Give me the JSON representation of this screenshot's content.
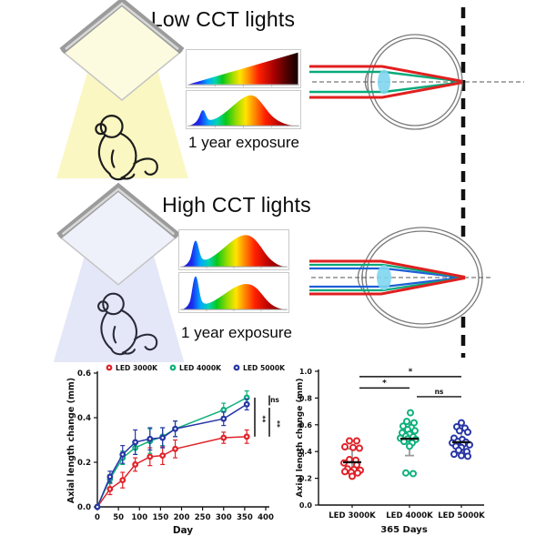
{
  "sections": {
    "low": {
      "title": "Low CCT lights",
      "exposure_label": "1 year exposure",
      "beam_color": "#fbf7c2",
      "lamp_face_color": "#fdfbdf",
      "spectra": [
        "blackbody-ramp-spectrum",
        "warm-white-led-spectrum"
      ],
      "eye": {
        "state": "normal axial length, focus on retina at reference line",
        "ray_colors": [
          "#e01f1f",
          "#09a97a"
        ]
      }
    },
    "high": {
      "title": "High CCT lights",
      "exposure_label": "1 year exposure",
      "beam_color": "#e4e7f7",
      "lamp_face_color": "#eef0fa",
      "spectra": [
        "cool-white-led-spectrum-A",
        "cool-white-led-spectrum-B"
      ],
      "eye": {
        "state": "elongated eye extending past reference line, focus in front of retina",
        "ray_colors": [
          "#e01f1f",
          "#09a97a",
          "#1d5fd6"
        ]
      }
    }
  },
  "colors": {
    "led3000k": "#e02128",
    "led4000k": "#0db07c",
    "led5000k": "#2836a6",
    "lens": "#7fd6f0",
    "eye_outline": "#7a7a7a",
    "reference_line": "#111111"
  },
  "chart_data": [
    {
      "type": "line",
      "title": "",
      "xlabel": "Day",
      "ylabel": "Axial length change (mm)",
      "xlim": [
        0,
        400
      ],
      "ylim": [
        0,
        0.6
      ],
      "xticks": [
        0,
        50,
        100,
        150,
        200,
        250,
        300,
        350,
        400
      ],
      "yticks": [
        0.0,
        0.2,
        0.4,
        0.6
      ],
      "grid": false,
      "legend_position": "top",
      "x": [
        0,
        30,
        60,
        90,
        125,
        155,
        185,
        300,
        355
      ],
      "series": [
        {
          "name": "LED 3000K",
          "color": "#e02128",
          "values": [
            0,
            0.08,
            0.12,
            0.19,
            0.225,
            0.23,
            0.26,
            0.31,
            0.315
          ],
          "errors": [
            0,
            0.025,
            0.035,
            0.03,
            0.04,
            0.04,
            0.04,
            0.025,
            0.03
          ]
        },
        {
          "name": "LED 4000K",
          "color": "#0db07c",
          "values": [
            0,
            0.125,
            0.22,
            0.265,
            0.295,
            0.315,
            0.35,
            0.435,
            0.49
          ],
          "errors": [
            0,
            0.02,
            0.03,
            0.03,
            0.055,
            0.04,
            0.035,
            0.03,
            0.03
          ]
        },
        {
          "name": "LED 5000K",
          "color": "#2836a6",
          "values": [
            0,
            0.135,
            0.235,
            0.29,
            0.305,
            0.31,
            0.35,
            0.395,
            0.46
          ],
          "errors": [
            0,
            0.025,
            0.04,
            0.055,
            0.05,
            0.045,
            0.035,
            0.03,
            0.025
          ]
        }
      ],
      "significance": [
        {
          "lane": 0,
          "from": 0.315,
          "to": 0.49,
          "label": "**"
        },
        {
          "lane": 1,
          "from": 0.455,
          "to": 0.5,
          "label": "ns"
        },
        {
          "lane": 1,
          "from": 0.315,
          "to": 0.445,
          "label": "**"
        }
      ]
    },
    {
      "type": "scatter",
      "title": "",
      "xlabel": "365 Days",
      "ylabel": "Axial length change (mm)",
      "ylim": [
        0,
        1.0
      ],
      "yticks": [
        0.0,
        0.2,
        0.4,
        0.6,
        0.8,
        1.0
      ],
      "categories": [
        "LED 3000K",
        "LED 4000K",
        "LED 5000K"
      ],
      "groups": [
        {
          "name": "LED 3000K",
          "color": "#e02128",
          "mean": 0.32,
          "sd_low": 0.24,
          "sd_high": 0.42,
          "points": [
            [
              -3,
              0.48
            ],
            [
              5,
              0.48
            ],
            [
              -8,
              0.435
            ],
            [
              1,
              0.43
            ],
            [
              8,
              0.425
            ],
            [
              -3,
              0.34
            ],
            [
              4,
              0.335
            ],
            [
              -9,
              0.315
            ],
            [
              5,
              0.3
            ],
            [
              -5,
              0.27
            ],
            [
              2,
              0.265
            ],
            [
              9,
              0.26
            ],
            [
              -8,
              0.25
            ],
            [
              -1,
              0.245
            ],
            [
              6,
              0.24
            ],
            [
              0,
              0.215
            ]
          ]
        },
        {
          "name": "LED 4000K",
          "color": "#0db07c",
          "mean": 0.495,
          "sd_low": 0.37,
          "sd_high": 0.615,
          "points": [
            [
              1,
              0.69
            ],
            [
              -3,
              0.625
            ],
            [
              5,
              0.615
            ],
            [
              -7,
              0.59
            ],
            [
              2,
              0.58
            ],
            [
              -2,
              0.565
            ],
            [
              6,
              0.555
            ],
            [
              -8,
              0.54
            ],
            [
              0,
              0.53
            ],
            [
              -4,
              0.515
            ],
            [
              4,
              0.51
            ],
            [
              -10,
              0.5
            ],
            [
              -2,
              0.495
            ],
            [
              7,
              0.49
            ],
            [
              -6,
              0.475
            ],
            [
              3,
              0.465
            ],
            [
              0,
              0.44
            ],
            [
              -4,
              0.24
            ],
            [
              4,
              0.235
            ]
          ]
        },
        {
          "name": "LED 5000K",
          "color": "#2836a6",
          "mean": 0.47,
          "sd_low": 0.4,
          "sd_high": 0.555,
          "points": [
            [
              0,
              0.615
            ],
            [
              -5,
              0.585
            ],
            [
              4,
              0.575
            ],
            [
              -2,
              0.555
            ],
            [
              7,
              0.545
            ],
            [
              -8,
              0.5
            ],
            [
              1,
              0.49
            ],
            [
              -4,
              0.475
            ],
            [
              5,
              0.47
            ],
            [
              -10,
              0.465
            ],
            [
              2,
              0.455
            ],
            [
              9,
              0.45
            ],
            [
              -6,
              0.44
            ],
            [
              0,
              0.43
            ],
            [
              -3,
              0.41
            ],
            [
              6,
              0.4
            ],
            [
              -8,
              0.38
            ],
            [
              0,
              0.37
            ],
            [
              7,
              0.365
            ]
          ]
        }
      ],
      "significance": [
        {
          "between": [
            0,
            2
          ],
          "y": 0.96,
          "label": "*"
        },
        {
          "between": [
            0,
            1
          ],
          "y": 0.875,
          "label": "*"
        },
        {
          "between": [
            1,
            2
          ],
          "y": 0.81,
          "label": "ns"
        }
      ]
    }
  ]
}
